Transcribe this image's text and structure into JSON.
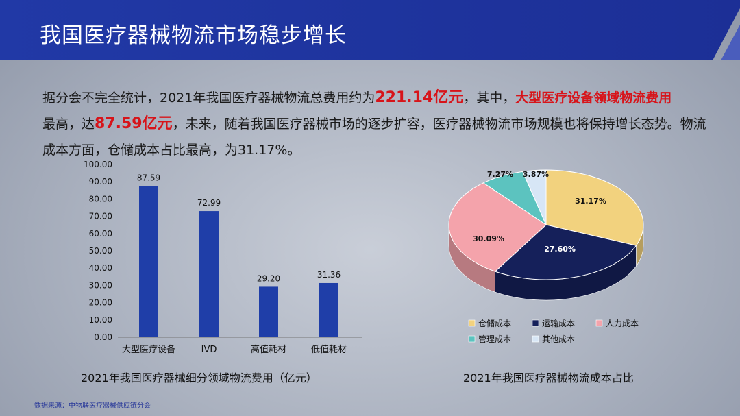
{
  "header": {
    "title": "我国医疗器械物流市场稳步增长"
  },
  "intro": {
    "p1": "据分会不完全统计，2021年我国医疗器械物流总费用约为",
    "h1": "221.14亿元",
    "p2": "，其中，",
    "h2": "大型医疗设备领域物流费用",
    "p3": "最高，达",
    "h3": "87.59亿元",
    "p4": "，未来，随着我国医疗器械市场的逐步扩容，医疗器械物流市场规模也将保持增长态势。物流成本方面，仓储成本占比最高，为31.17%。"
  },
  "chart_data": [
    {
      "type": "bar",
      "title": "2021年我国医疗器械细分领域物流费用（亿元）",
      "categories": [
        "大型医疗设备",
        "IVD",
        "高值耗材",
        "低值耗材"
      ],
      "values": [
        87.59,
        72.99,
        29.2,
        31.36
      ],
      "ylim": [
        0,
        100
      ],
      "yticks": [
        "0.00",
        "10.00",
        "20.00",
        "30.00",
        "40.00",
        "50.00",
        "60.00",
        "70.00",
        "80.00",
        "90.00",
        "100.00"
      ],
      "color": "#1f3ea8",
      "grid": false
    },
    {
      "type": "pie",
      "title": "2021年我国医疗器械物流成本占比",
      "labels": [
        "仓储成本",
        "运输成本",
        "人力成本",
        "管理成本",
        "其他成本"
      ],
      "values": [
        31.17,
        27.6,
        30.09,
        7.27,
        3.87
      ],
      "data_labels": [
        "31.17%",
        "27.60%",
        "30.09%",
        "7.27%",
        "3.87%"
      ],
      "colors": [
        "#f2d27e",
        "#15205a",
        "#f4a3ab",
        "#5cc3bf",
        "#d7e6f6"
      ],
      "style": "3d",
      "legend": "bottom"
    }
  ],
  "source": "数据来源：中物联医疗器械供应链分会"
}
